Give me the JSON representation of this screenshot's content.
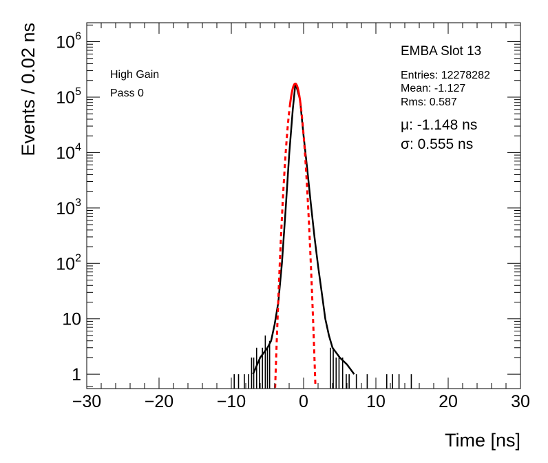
{
  "chart_data": {
    "type": "histogram",
    "title": "",
    "xlabel": "Time [ns]",
    "ylabel": "Events / 0.02 ns",
    "xlim": [
      -30,
      30
    ],
    "ylim": [
      0.55,
      2200000
    ],
    "y_scale": "log",
    "grid": false,
    "x_ticks": [
      {
        "v": -30,
        "label": "−30"
      },
      {
        "v": -20,
        "label": "−20"
      },
      {
        "v": -10,
        "label": "−10"
      },
      {
        "v": 0,
        "label": "0"
      },
      {
        "v": 10,
        "label": "10"
      },
      {
        "v": 20,
        "label": "20"
      },
      {
        "v": 30,
        "label": "30"
      }
    ],
    "y_ticks": [
      {
        "v": 1,
        "base": "1",
        "exp": ""
      },
      {
        "v": 10,
        "base": "10",
        "exp": ""
      },
      {
        "v": 100,
        "base": "10",
        "exp": "2"
      },
      {
        "v": 1000,
        "base": "10",
        "exp": "3"
      },
      {
        "v": 10000,
        "base": "10",
        "exp": "4"
      },
      {
        "v": 100000,
        "base": "10",
        "exp": "5"
      },
      {
        "v": 1000000,
        "base": "10",
        "exp": "6"
      }
    ],
    "series": [
      {
        "name": "",
        "style": "histogram-envelope",
        "color": "#000000",
        "x": [
          -7.0,
          -6.0,
          -5.0,
          -4.5,
          -4.0,
          -3.5,
          -3.0,
          -2.5,
          -2.0,
          -1.5,
          -1.127,
          -0.5,
          0.0,
          0.5,
          1.0,
          1.5,
          2.0,
          2.5,
          3.0,
          3.5,
          4.0,
          5.0,
          6.0,
          7.0
        ],
        "y": [
          1,
          2,
          3,
          4,
          8,
          20,
          100,
          900,
          9000,
          60000,
          180000,
          90000,
          20000,
          5000,
          1200,
          300,
          90,
          30,
          10,
          5,
          3,
          2,
          1.5,
          1
        ]
      },
      {
        "name": "",
        "style": "gaussian-fit",
        "color": "#ff0000",
        "mean": -1.148,
        "sigma": 0.555,
        "peak": 175000
      }
    ],
    "sparse_entries": [
      {
        "x": -9.6,
        "y": 1
      },
      {
        "x": -9.0,
        "y": 1
      },
      {
        "x": -8.2,
        "y": 1
      },
      {
        "x": -7.6,
        "y": 1
      },
      {
        "x": -7.2,
        "y": 2
      },
      {
        "x": -6.9,
        "y": 2
      },
      {
        "x": -6.5,
        "y": 3
      },
      {
        "x": -6.1,
        "y": 2
      },
      {
        "x": -5.7,
        "y": 3
      },
      {
        "x": -5.3,
        "y": 5
      },
      {
        "x": -5.0,
        "y": 3
      },
      {
        "x": -4.7,
        "y": 4
      },
      {
        "x": 3.7,
        "y": 3
      },
      {
        "x": 4.1,
        "y": 3
      },
      {
        "x": 4.5,
        "y": 2
      },
      {
        "x": 4.9,
        "y": 2
      },
      {
        "x": 5.4,
        "y": 2
      },
      {
        "x": 5.9,
        "y": 1
      },
      {
        "x": 6.3,
        "y": 1
      },
      {
        "x": 7.3,
        "y": 1
      },
      {
        "x": 8.8,
        "y": 1
      },
      {
        "x": 11.5,
        "y": 1
      },
      {
        "x": 12.3,
        "y": 1
      },
      {
        "x": 13.2,
        "y": 1
      },
      {
        "x": 14.9,
        "y": 1
      }
    ],
    "annotations": {
      "gain": "High Gain",
      "pass": "Pass 0"
    },
    "stats_box": {
      "title": "EMBA Slot 13",
      "entries": "Entries: 12278282",
      "mean": "Mean: -1.127",
      "rms": "Rms: 0.587"
    },
    "fit_results": {
      "mu": "μ: -1.148 ns",
      "sigma": "σ: 0.555 ns"
    }
  }
}
